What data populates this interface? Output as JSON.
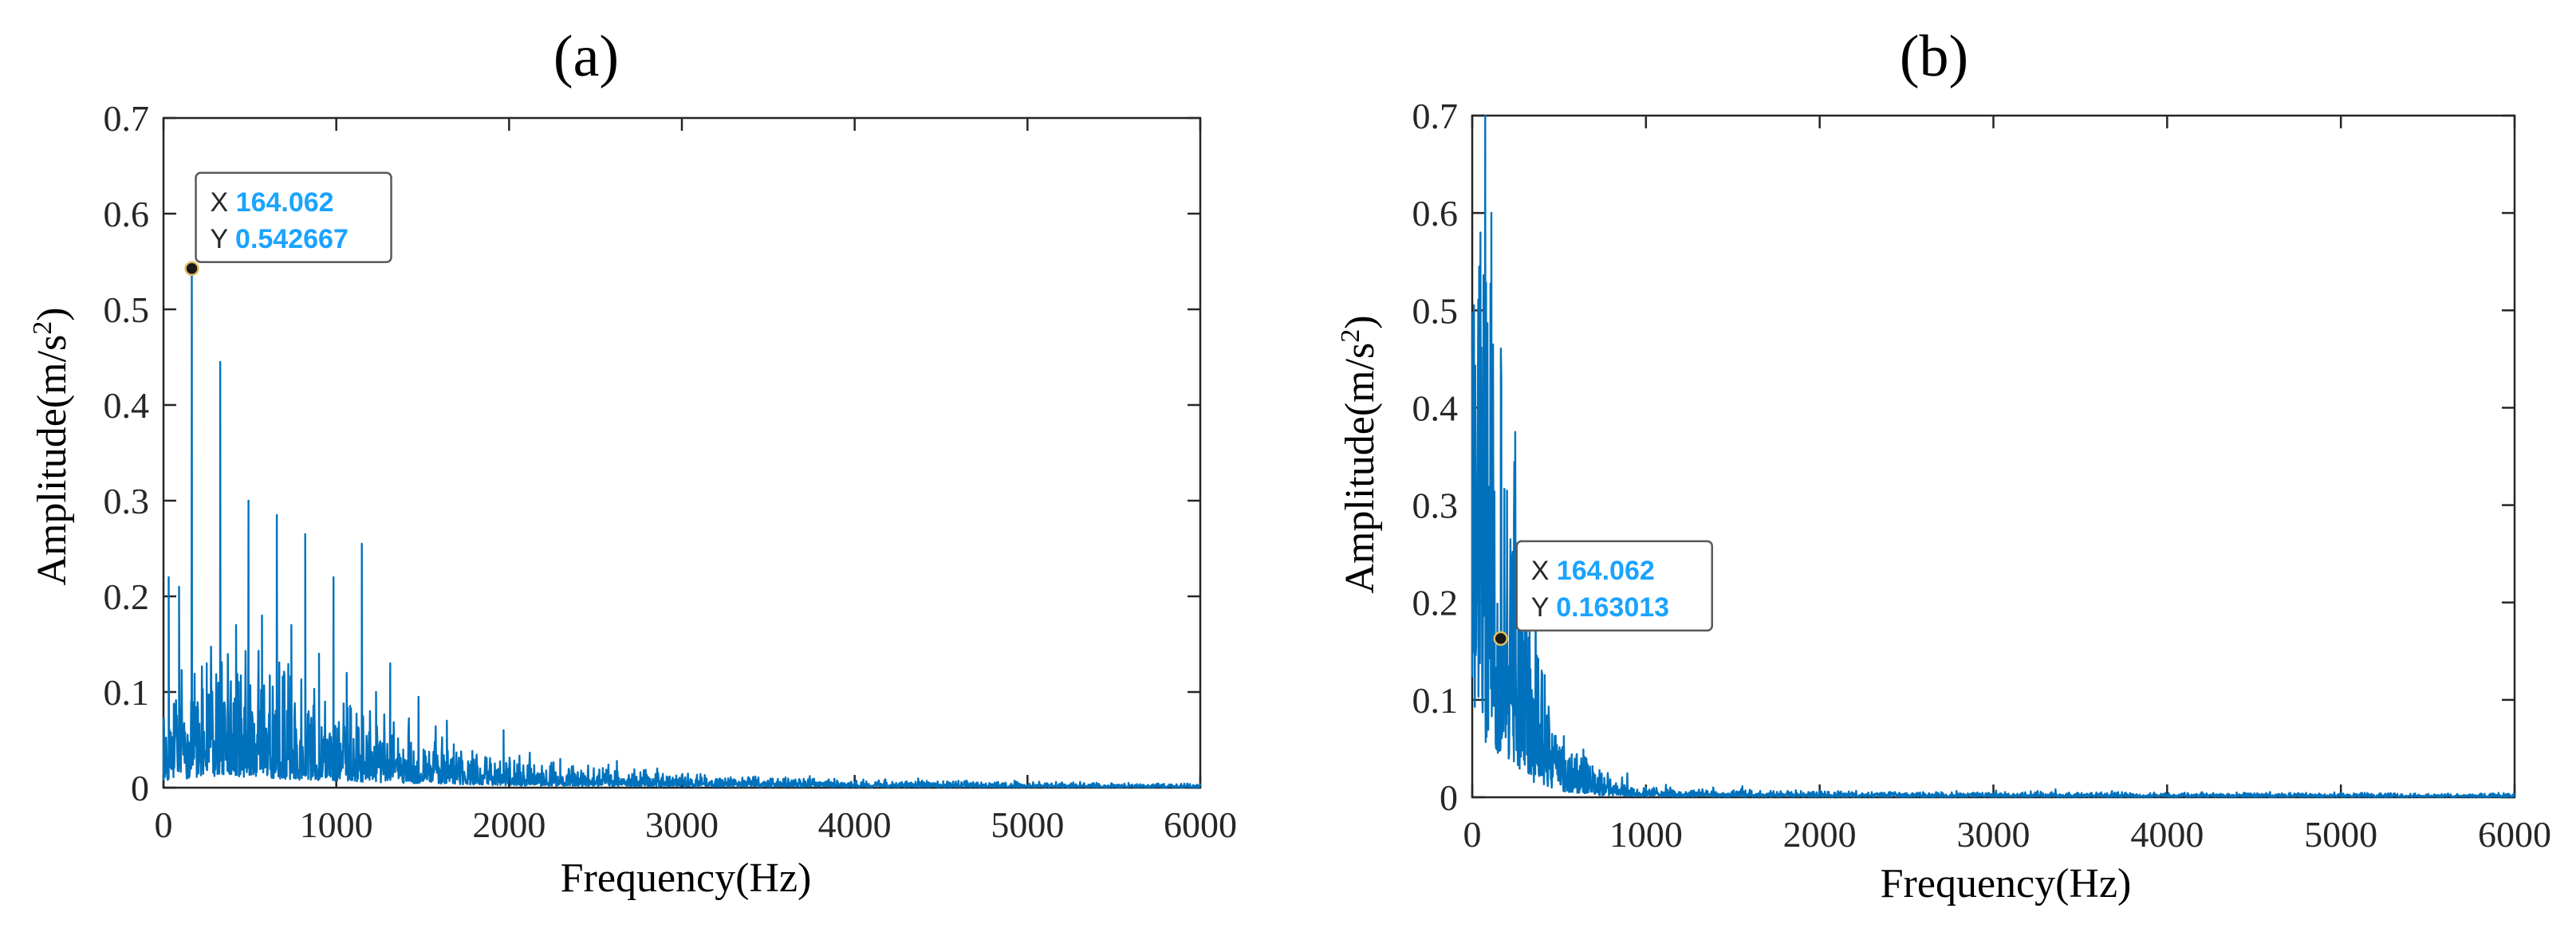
{
  "chart_data": [
    {
      "panel_label": "(a)",
      "type": "line",
      "xlabel": "Frequency(Hz)",
      "ylabel": "Amplitude(m/s2)",
      "ylabel_base": "Amplitude(m/s",
      "ylabel_sup": "2",
      "ylabel_close": ")",
      "xlim": [
        0,
        6000
      ],
      "ylim": [
        0,
        0.7
      ],
      "xticks": [
        0,
        1000,
        2000,
        3000,
        4000,
        5000,
        6000
      ],
      "yticks": [
        0,
        0.1,
        0.2,
        0.3,
        0.4,
        0.5,
        0.6,
        0.7
      ],
      "ytick_labels": [
        "0",
        "0.1",
        "0.2",
        "0.3",
        "0.4",
        "0.5",
        "0.6",
        "0.7"
      ],
      "series_color": "#0072BD",
      "peaks": [
        {
          "x": 30,
          "y": 0.22
        },
        {
          "x": 90,
          "y": 0.21
        },
        {
          "x": 164.062,
          "y": 0.542667
        },
        {
          "x": 250,
          "y": 0.13
        },
        {
          "x": 328,
          "y": 0.445
        },
        {
          "x": 420,
          "y": 0.17
        },
        {
          "x": 492,
          "y": 0.3
        },
        {
          "x": 570,
          "y": 0.18
        },
        {
          "x": 656,
          "y": 0.285
        },
        {
          "x": 740,
          "y": 0.17
        },
        {
          "x": 820,
          "y": 0.265
        },
        {
          "x": 900,
          "y": 0.14
        },
        {
          "x": 984,
          "y": 0.22
        },
        {
          "x": 1060,
          "y": 0.12
        },
        {
          "x": 1148,
          "y": 0.255
        },
        {
          "x": 1230,
          "y": 0.1
        },
        {
          "x": 1312,
          "y": 0.13
        },
        {
          "x": 1476,
          "y": 0.095
        },
        {
          "x": 1640,
          "y": 0.07
        },
        {
          "x": 1968,
          "y": 0.06
        },
        {
          "x": 2296,
          "y": 0.03
        },
        {
          "x": 2624,
          "y": 0.028
        }
      ],
      "envelope": [
        {
          "x": 0,
          "y": 0.05
        },
        {
          "x": 300,
          "y": 0.08
        },
        {
          "x": 800,
          "y": 0.055
        },
        {
          "x": 1300,
          "y": 0.035
        },
        {
          "x": 2000,
          "y": 0.015
        },
        {
          "x": 3000,
          "y": 0.007
        },
        {
          "x": 4000,
          "y": 0.004
        },
        {
          "x": 6000,
          "y": 0.002
        }
      ],
      "datatip": {
        "x": 164.062,
        "y": 0.542667,
        "x_label": "X",
        "x_value": "164.062",
        "y_label": "Y",
        "y_value": "0.542667"
      }
    },
    {
      "panel_label": "(b)",
      "type": "line",
      "xlabel": "Frequency(Hz)",
      "ylabel": "Amplitude(m/s2)",
      "ylabel_base": "Amplitude(m/s",
      "ylabel_sup": "2",
      "ylabel_close": ")",
      "xlim": [
        0,
        6000
      ],
      "ylim": [
        0,
        0.7
      ],
      "xticks": [
        0,
        1000,
        2000,
        3000,
        4000,
        5000,
        6000
      ],
      "yticks": [
        0,
        0.1,
        0.2,
        0.3,
        0.4,
        0.5,
        0.6,
        0.7
      ],
      "ytick_labels": [
        "0",
        "0.1",
        "0.2",
        "0.3",
        "0.4",
        "0.5",
        "0.6",
        "0.7"
      ],
      "series_color": "#0072BD",
      "peaks": [
        {
          "x": 40,
          "y": 0.545
        },
        {
          "x": 80,
          "y": 0.47
        },
        {
          "x": 120,
          "y": 0.465
        },
        {
          "x": 164.062,
          "y": 0.163013
        },
        {
          "x": 200,
          "y": 0.315
        },
        {
          "x": 240,
          "y": 0.28
        },
        {
          "x": 290,
          "y": 0.19
        },
        {
          "x": 330,
          "y": 0.17
        },
        {
          "x": 400,
          "y": 0.1
        },
        {
          "x": 460,
          "y": 0.065
        },
        {
          "x": 560,
          "y": 0.04
        },
        {
          "x": 660,
          "y": 0.035
        },
        {
          "x": 760,
          "y": 0.02
        },
        {
          "x": 1000,
          "y": 0.01
        }
      ],
      "envelope": [
        {
          "x": 0,
          "y": 0.36
        },
        {
          "x": 150,
          "y": 0.3
        },
        {
          "x": 250,
          "y": 0.2
        },
        {
          "x": 350,
          "y": 0.1
        },
        {
          "x": 500,
          "y": 0.04
        },
        {
          "x": 750,
          "y": 0.012
        },
        {
          "x": 1000,
          "y": 0.005
        },
        {
          "x": 2000,
          "y": 0.003
        },
        {
          "x": 6000,
          "y": 0.002
        }
      ],
      "datatip": {
        "x": 164.062,
        "y": 0.163013,
        "x_label": "X",
        "x_value": "164.062",
        "y_label": "Y",
        "y_value": "0.163013"
      }
    }
  ]
}
